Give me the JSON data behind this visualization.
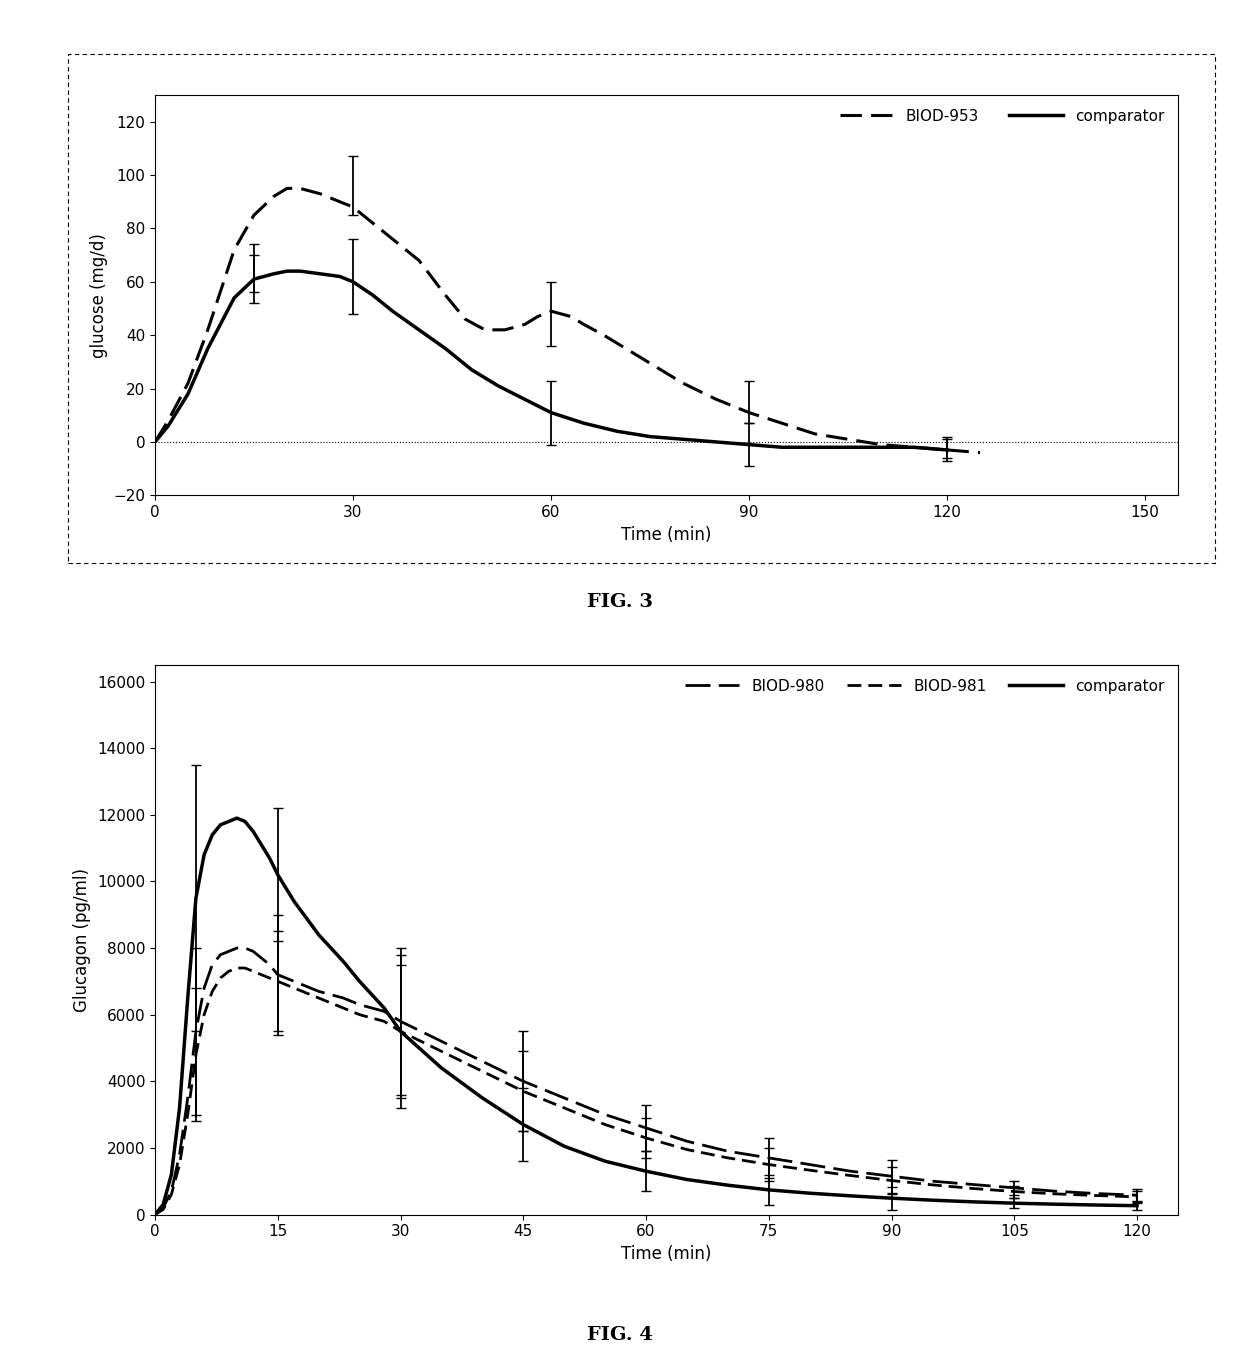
{
  "fig3": {
    "xlabel": "Time (min)",
    "ylabel": "glucose (mg/d)",
    "xlim": [
      0,
      155
    ],
    "ylim": [
      -20,
      130
    ],
    "yticks": [
      -20,
      0,
      20,
      40,
      60,
      80,
      100,
      120
    ],
    "xticks": [
      0,
      30,
      60,
      90,
      120,
      150
    ],
    "biod953": {
      "x": [
        0,
        2,
        5,
        8,
        12,
        15,
        18,
        20,
        22,
        25,
        28,
        30,
        33,
        36,
        40,
        44,
        47,
        50,
        53,
        56,
        58,
        60,
        63,
        65,
        68,
        72,
        76,
        80,
        85,
        90,
        95,
        100,
        105,
        110,
        115,
        120,
        125
      ],
      "y": [
        0,
        8,
        22,
        42,
        72,
        85,
        92,
        95,
        95,
        93,
        90,
        88,
        82,
        76,
        68,
        55,
        46,
        42,
        42,
        44,
        47,
        49,
        47,
        44,
        40,
        34,
        28,
        22,
        16,
        11,
        7,
        3,
        1,
        -1,
        -2,
        -3,
        -4
      ],
      "err_x": [
        15,
        30,
        60,
        90,
        120
      ],
      "err_y": [
        65,
        95,
        48,
        15,
        -2
      ],
      "err_plus": [
        9,
        12,
        12,
        8,
        4
      ],
      "err_minus": [
        9,
        10,
        12,
        8,
        4
      ]
    },
    "comparator": {
      "x": [
        0,
        2,
        5,
        8,
        12,
        15,
        18,
        20,
        22,
        25,
        28,
        30,
        33,
        36,
        40,
        44,
        48,
        52,
        56,
        60,
        65,
        70,
        75,
        80,
        85,
        90,
        95,
        100,
        105,
        110,
        115,
        120
      ],
      "y": [
        0,
        6,
        18,
        35,
        54,
        61,
        63,
        64,
        64,
        63,
        62,
        60,
        55,
        49,
        42,
        35,
        27,
        21,
        16,
        11,
        7,
        4,
        2,
        1,
        0,
        -1,
        -2,
        -2,
        -2,
        -2,
        -2,
        -3
      ],
      "err_x": [
        15,
        30,
        60,
        90,
        120
      ],
      "err_y": [
        61,
        62,
        11,
        -1,
        -3
      ],
      "err_plus": [
        9,
        14,
        12,
        8,
        4
      ],
      "err_minus": [
        9,
        14,
        12,
        8,
        4
      ]
    }
  },
  "fig4": {
    "xlabel": "Time (min)",
    "ylabel": "Glucagon (pg/ml)",
    "xlim": [
      0,
      125
    ],
    "ylim": [
      0,
      16500
    ],
    "yticks": [
      0,
      2000,
      4000,
      6000,
      8000,
      10000,
      12000,
      14000,
      16000
    ],
    "xticks": [
      0,
      15,
      30,
      45,
      60,
      75,
      90,
      105,
      120
    ],
    "biod980": {
      "x": [
        0,
        1,
        2,
        3,
        4,
        5,
        6,
        7,
        8,
        9,
        10,
        11,
        12,
        13,
        14,
        15,
        17,
        20,
        23,
        25,
        28,
        30,
        35,
        40,
        45,
        50,
        55,
        60,
        65,
        70,
        75,
        80,
        85,
        90,
        95,
        100,
        105,
        110,
        115,
        120
      ],
      "y": [
        0,
        200,
        700,
        1800,
        3500,
        5500,
        6800,
        7500,
        7800,
        7900,
        8000,
        8000,
        7900,
        7700,
        7500,
        7200,
        7000,
        6700,
        6500,
        6300,
        6100,
        5800,
        5200,
        4600,
        4000,
        3500,
        3000,
        2600,
        2200,
        1900,
        1700,
        1500,
        1300,
        1150,
        1000,
        900,
        800,
        700,
        630,
        580
      ],
      "err_x": [
        5,
        15,
        30,
        45,
        60,
        75,
        90,
        105,
        120
      ],
      "err_y": [
        5500,
        7200,
        5800,
        4000,
        2600,
        1700,
        1150,
        800,
        580
      ],
      "err_plus": [
        2500,
        1800,
        2200,
        1500,
        700,
        600,
        500,
        200,
        200
      ],
      "err_minus": [
        2500,
        1800,
        2200,
        1500,
        700,
        600,
        500,
        200,
        200
      ]
    },
    "biod981": {
      "x": [
        0,
        1,
        2,
        3,
        4,
        5,
        6,
        7,
        8,
        9,
        10,
        11,
        12,
        13,
        14,
        15,
        17,
        20,
        23,
        25,
        28,
        30,
        35,
        40,
        45,
        50,
        55,
        60,
        65,
        70,
        75,
        80,
        85,
        90,
        95,
        100,
        105,
        110,
        115,
        120
      ],
      "y": [
        0,
        150,
        600,
        1500,
        3000,
        4800,
        6000,
        6700,
        7100,
        7300,
        7400,
        7400,
        7300,
        7200,
        7100,
        7000,
        6800,
        6500,
        6200,
        6000,
        5800,
        5500,
        4900,
        4300,
        3700,
        3200,
        2700,
        2300,
        1950,
        1700,
        1500,
        1330,
        1170,
        1020,
        890,
        780,
        690,
        620,
        570,
        530
      ],
      "err_x": [
        5,
        15,
        30,
        45,
        60,
        75,
        90,
        105,
        120
      ],
      "err_y": [
        4800,
        7000,
        5500,
        3700,
        2300,
        1500,
        1020,
        690,
        530
      ],
      "err_plus": [
        2000,
        1500,
        2000,
        1200,
        600,
        500,
        400,
        180,
        180
      ],
      "err_minus": [
        2000,
        1500,
        2000,
        1200,
        600,
        500,
        400,
        180,
        180
      ]
    },
    "comparator": {
      "x": [
        0,
        1,
        2,
        3,
        4,
        5,
        6,
        7,
        8,
        9,
        10,
        11,
        12,
        13,
        14,
        15,
        17,
        20,
        23,
        25,
        28,
        30,
        35,
        40,
        45,
        50,
        55,
        60,
        65,
        70,
        75,
        80,
        85,
        90,
        95,
        100,
        105,
        110,
        115,
        120
      ],
      "y": [
        0,
        300,
        1200,
        3200,
        6500,
        9500,
        10800,
        11400,
        11700,
        11800,
        11900,
        11800,
        11500,
        11100,
        10700,
        10200,
        9400,
        8400,
        7600,
        7000,
        6200,
        5500,
        4400,
        3500,
        2700,
        2050,
        1600,
        1300,
        1050,
        880,
        740,
        640,
        560,
        490,
        430,
        380,
        340,
        310,
        285,
        265
      ],
      "err_x": [
        5,
        15,
        30,
        45,
        60,
        75,
        90,
        105,
        120
      ],
      "err_y": [
        9500,
        10200,
        5500,
        2700,
        1300,
        740,
        490,
        340,
        265
      ],
      "err_plus": [
        4000,
        2000,
        2300,
        1100,
        600,
        450,
        350,
        150,
        130
      ],
      "err_minus": [
        4000,
        2000,
        2300,
        1100,
        600,
        450,
        350,
        150,
        130
      ]
    }
  },
  "fig3_caption": "FIG. 3",
  "fig4_caption": "FIG. 4",
  "background_color": "#ffffff"
}
